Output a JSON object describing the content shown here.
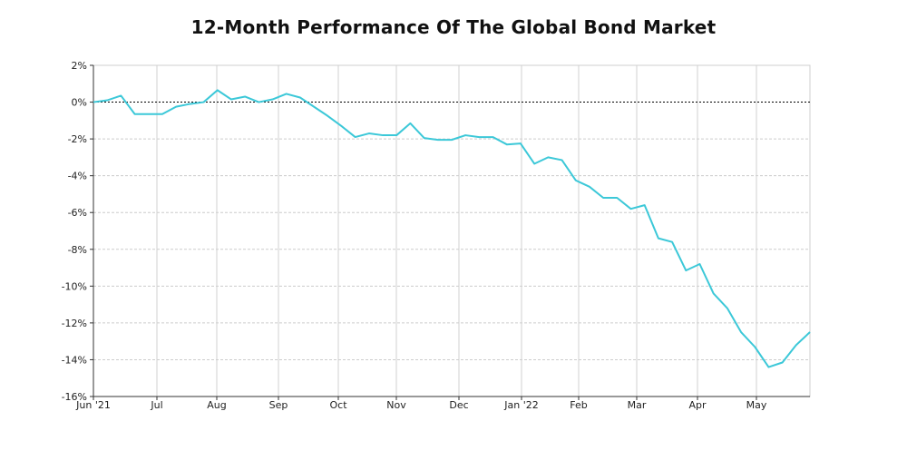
{
  "chart_data": {
    "type": "line",
    "title": "12-Month Performance Of The Global Bond Market",
    "xlabel": "",
    "ylabel": "",
    "x_ticks": [
      "Jun '21",
      "Jul",
      "Aug",
      "Sep",
      "Oct",
      "Nov",
      "Dec",
      "Jan '22",
      "Feb",
      "Mar",
      "Apr",
      "May"
    ],
    "y_ticks": [
      "2%",
      "0%",
      "-2%",
      "-4%",
      "-6%",
      "-8%",
      "-10%",
      "-12%",
      "-14%",
      "-16%"
    ],
    "ylim": [
      -16,
      2
    ],
    "grid": true,
    "zero_line": true,
    "series_color": "#3cc8d8",
    "series": [
      {
        "values": [
          0.0,
          0.1,
          0.35,
          -0.65,
          -0.65,
          -0.65,
          -0.25,
          -0.1,
          0.0,
          0.65,
          0.15,
          0.3,
          0.0,
          0.15,
          0.45,
          0.25,
          -0.25,
          -0.75,
          -1.3,
          -1.9,
          -1.7,
          -1.8,
          -1.8,
          -1.15,
          -1.95,
          -2.05,
          -2.05,
          -1.8,
          -1.9,
          -1.9,
          -2.3,
          -2.25,
          -3.35,
          -3.0,
          -3.15,
          -4.25,
          -4.6,
          -5.2,
          -5.2,
          -5.8,
          -5.6,
          -7.4,
          -7.6,
          -9.15,
          -8.8,
          -10.4,
          -11.2,
          -12.5,
          -13.3,
          -14.4,
          -14.15,
          -13.2,
          -12.5
        ]
      }
    ]
  }
}
